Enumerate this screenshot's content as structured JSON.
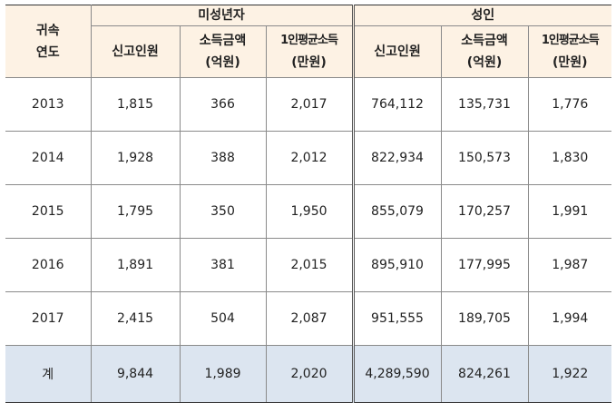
{
  "header": {
    "year_col": [
      "귀속",
      "연도"
    ],
    "group_minor": "미성년자",
    "group_adult": "성인",
    "sub": {
      "filers": "신고인원",
      "income": [
        "소득금액",
        "(억원)"
      ],
      "avg": [
        "1인평균소득",
        "(만원)"
      ]
    }
  },
  "rows": [
    {
      "year": "2013",
      "minor": [
        "1,815",
        "366",
        "2,017"
      ],
      "adult": [
        "764,112",
        "135,731",
        "1,776"
      ]
    },
    {
      "year": "2014",
      "minor": [
        "1,928",
        "388",
        "2,012"
      ],
      "adult": [
        "822,934",
        "150,573",
        "1,830"
      ]
    },
    {
      "year": "2015",
      "minor": [
        "1,795",
        "350",
        "1,950"
      ],
      "adult": [
        "855,079",
        "170,257",
        "1,991"
      ]
    },
    {
      "year": "2016",
      "minor": [
        "1,891",
        "381",
        "2,015"
      ],
      "adult": [
        "895,910",
        "177,995",
        "1,987"
      ]
    },
    {
      "year": "2017",
      "minor": [
        "2,415",
        "504",
        "2,087"
      ],
      "adult": [
        "951,555",
        "189,705",
        "1,994"
      ]
    }
  ],
  "total": {
    "label": "계",
    "minor": [
      "9,844",
      "1,989",
      "2,020"
    ],
    "adult": [
      "4,289,590",
      "824,261",
      "1,922"
    ]
  }
}
